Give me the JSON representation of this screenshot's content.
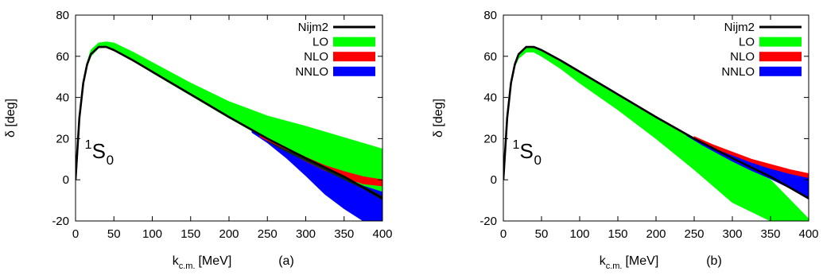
{
  "chart_data": [
    {
      "type": "line",
      "panel_tag": "(a)",
      "xlabel": "k",
      "xlabel_sub": "c.m.",
      "xlabel_unit": "[MeV]",
      "ylabel": "δ [deg]",
      "xlim": [
        0,
        400
      ],
      "ylim": [
        -20,
        80
      ],
      "x_ticks": [
        0,
        50,
        100,
        150,
        200,
        250,
        300,
        350,
        400
      ],
      "y_ticks": [
        -20,
        0,
        20,
        40,
        60,
        80
      ],
      "grid": false,
      "legend_position": "top-right",
      "annotation": {
        "sup": "1",
        "base": "S",
        "sub": "0"
      },
      "bands": [
        {
          "name": "LO",
          "color": "#00ff00",
          "x": [
            0,
            5,
            10,
            15,
            20,
            30,
            40,
            50,
            75,
            100,
            150,
            200,
            250,
            300,
            350,
            400
          ],
          "upper": [
            0,
            30,
            48,
            57,
            63,
            66.5,
            67,
            66.5,
            62,
            57,
            47,
            38,
            31,
            26,
            20.5,
            15
          ],
          "lower": [
            0,
            29,
            46,
            55,
            60,
            64,
            64.5,
            63.5,
            58,
            52,
            41,
            30,
            19.5,
            10,
            1,
            -8
          ]
        },
        {
          "name": "NNLO",
          "color": "#0000ff",
          "x": [
            230,
            250,
            275,
            300,
            325,
            350,
            375,
            400
          ],
          "upper": [
            24,
            19.5,
            14,
            9,
            5,
            1,
            -3,
            -6
          ],
          "lower": [
            23,
            18,
            10.5,
            2,
            -7,
            -14,
            -20,
            -20
          ]
        },
        {
          "name": "NLO",
          "color": "#ff0000",
          "x": [
            240,
            260,
            280,
            300,
            325,
            350,
            375,
            400
          ],
          "upper": [
            21.5,
            18,
            14.5,
            11,
            7,
            4,
            1.5,
            0
          ],
          "lower": [
            21,
            17,
            13,
            9,
            4.5,
            1,
            -2,
            -3
          ]
        }
      ],
      "lines": [
        {
          "name": "Nijm2",
          "color": "#000000",
          "x": [
            0,
            5,
            10,
            15,
            20,
            30,
            40,
            50,
            75,
            100,
            150,
            200,
            250,
            300,
            350,
            400
          ],
          "y": [
            0,
            30,
            47,
            56,
            61,
            64.5,
            64.5,
            63,
            58,
            52.5,
            41.5,
            30.5,
            20,
            10.5,
            1.5,
            -9
          ]
        }
      ],
      "dark_overlay": {
        "color": "#0f2a0f",
        "x": [
          250,
          275,
          300,
          325,
          350,
          375,
          400
        ],
        "upper": [
          19,
          14.5,
          10.5,
          6,
          1.5,
          -3,
          -8
        ],
        "lower": [
          18.5,
          13.5,
          9,
          4.5,
          0,
          -4.5,
          -10
        ]
      },
      "legend": [
        {
          "label": "Nijm2",
          "color": "#000000",
          "style": "line"
        },
        {
          "label": "LO",
          "color": "#00ff00",
          "style": "band"
        },
        {
          "label": "NLO",
          "color": "#ff0000",
          "style": "band"
        },
        {
          "label": "NNLO",
          "color": "#0000ff",
          "style": "band"
        }
      ]
    },
    {
      "type": "line",
      "panel_tag": "(b)",
      "xlabel": "k",
      "xlabel_sub": "c.m.",
      "xlabel_unit": "[MeV]",
      "ylabel": "δ [deg]",
      "xlim": [
        0,
        400
      ],
      "ylim": [
        -20,
        80
      ],
      "x_ticks": [
        0,
        50,
        100,
        150,
        200,
        250,
        300,
        350,
        400
      ],
      "y_ticks": [
        -20,
        0,
        20,
        40,
        60,
        80
      ],
      "grid": false,
      "legend_position": "top-right",
      "annotation": {
        "sup": "1",
        "base": "S",
        "sub": "0"
      },
      "bands": [
        {
          "name": "LO",
          "color": "#00ff00",
          "x": [
            0,
            5,
            10,
            15,
            20,
            30,
            40,
            50,
            75,
            100,
            150,
            200,
            250,
            300,
            350,
            400
          ],
          "upper": [
            0,
            30,
            48,
            57,
            61.5,
            64,
            64,
            62.5,
            57.5,
            52,
            41,
            30.5,
            20,
            10,
            0,
            -19
          ],
          "lower": [
            0,
            29,
            46,
            55,
            59,
            62,
            62,
            60,
            54,
            47,
            34,
            20,
            5,
            -11,
            -20,
            -20
          ]
        },
        {
          "name": "NNLO",
          "color": "#0000ff",
          "x": [
            240,
            260,
            280,
            300,
            325,
            350,
            375,
            400
          ],
          "upper": [
            22,
            18,
            15,
            12,
            9,
            6.5,
            3.5,
            1
          ],
          "lower": [
            21.5,
            17,
            13,
            9,
            4.5,
            0.5,
            -4,
            -9.5
          ]
        },
        {
          "name": "NLO",
          "color": "#ff0000",
          "x": [
            250,
            275,
            300,
            325,
            350,
            375,
            400
          ],
          "upper": [
            21,
            17,
            13.5,
            10,
            7.5,
            5,
            3
          ],
          "lower": [
            20,
            15.5,
            12,
            8.5,
            5.5,
            3,
            1
          ]
        }
      ],
      "lines": [
        {
          "name": "Nijm2",
          "color": "#000000",
          "x": [
            0,
            5,
            10,
            15,
            20,
            30,
            40,
            50,
            75,
            100,
            150,
            200,
            250,
            300,
            350,
            400
          ],
          "y": [
            0,
            30,
            47,
            56,
            61,
            64.5,
            64.5,
            63,
            58,
            52.5,
            41.5,
            30.5,
            20,
            10.5,
            1.5,
            -9
          ]
        }
      ],
      "dark_overlay": null,
      "legend": [
        {
          "label": "Nijm2",
          "color": "#000000",
          "style": "line"
        },
        {
          "label": "LO",
          "color": "#00ff00",
          "style": "band"
        },
        {
          "label": "NLO",
          "color": "#ff0000",
          "style": "band"
        },
        {
          "label": "NNLO",
          "color": "#0000ff",
          "style": "band"
        }
      ]
    }
  ]
}
